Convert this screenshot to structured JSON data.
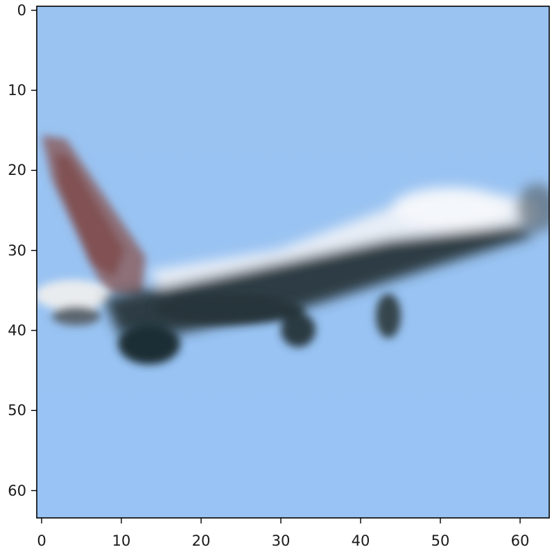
{
  "image": {
    "description_subject": "blurry low-resolution photo of an airliner against a blue sky",
    "colors": {
      "sky": "#97c2f2",
      "fuselage_top": "#eef3fa",
      "fuselage_dark": "#2f3f45",
      "tail": "#8c5f61",
      "axis": "#000000"
    }
  },
  "axes": {
    "x_range": [
      0,
      63
    ],
    "y_range": [
      63,
      0
    ],
    "x_ticks": [
      "0",
      "10",
      "20",
      "30",
      "40",
      "50",
      "60"
    ],
    "y_ticks": [
      "0",
      "10",
      "20",
      "30",
      "40",
      "50",
      "60"
    ]
  }
}
